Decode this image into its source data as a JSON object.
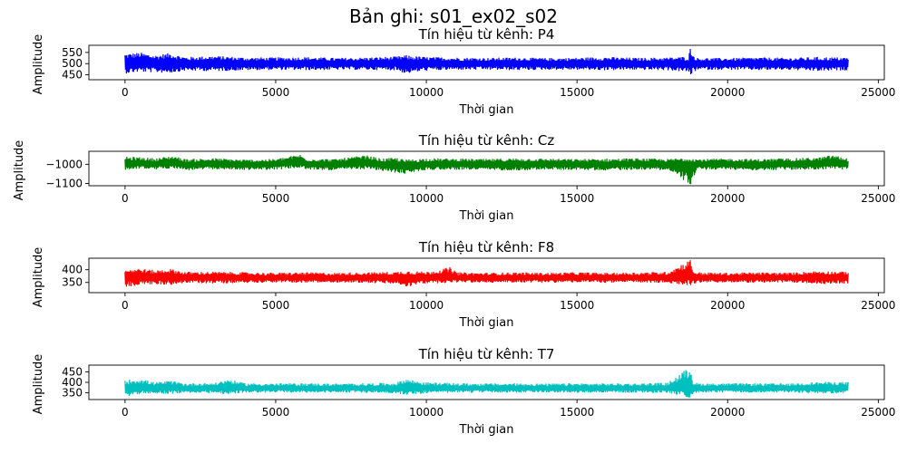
{
  "figure": {
    "suptitle": "Bản ghi: s01_ex02_s02"
  },
  "chart_data": [
    {
      "type": "line",
      "title": "Tín hiệu từ kênh: P4",
      "xlabel": "Thời gian",
      "ylabel": "Amplitude",
      "color": "#0000ff",
      "xlim": [
        -1200,
        25200
      ],
      "ylim": [
        428,
        582
      ],
      "xticks": [
        0,
        5000,
        10000,
        15000,
        20000,
        25000
      ],
      "yticks": [
        450,
        500,
        550
      ],
      "series": [
        {
          "x": [
            0,
            500,
            1000,
            1500,
            2000,
            3000,
            4000,
            5000,
            6000,
            7000,
            8000,
            9000,
            9300,
            10000,
            11000,
            12000,
            13000,
            14000,
            15000,
            16000,
            17000,
            18000,
            18700,
            18780,
            18850,
            19000,
            20000,
            21000,
            22000,
            23000,
            24000
          ],
          "mean": [
            502,
            505,
            500,
            504,
            498,
            502,
            499,
            500,
            501,
            499,
            500,
            502,
            497,
            501,
            499,
            500,
            501,
            499,
            500,
            501,
            499,
            500,
            498,
            505,
            500,
            499,
            500,
            501,
            499,
            498,
            500
          ],
          "high": [
            545,
            550,
            538,
            548,
            530,
            535,
            528,
            528,
            530,
            526,
            528,
            532,
            538,
            530,
            528,
            526,
            528,
            525,
            527,
            530,
            526,
            528,
            532,
            582,
            540,
            526,
            525,
            528,
            526,
            530,
            528
          ],
          "low": [
            455,
            462,
            460,
            458,
            468,
            466,
            470,
            472,
            470,
            472,
            472,
            470,
            455,
            468,
            472,
            472,
            470,
            472,
            472,
            470,
            472,
            470,
            462,
            445,
            460,
            472,
            472,
            470,
            472,
            466,
            470
          ]
        }
      ]
    },
    {
      "type": "line",
      "title": "Tín hiệu từ kênh: Cz",
      "xlabel": "Thời gian",
      "ylabel": "Amplitude",
      "color": "#008000",
      "xlim": [
        -1200,
        25200
      ],
      "ylim": [
        -1112,
        -932
      ],
      "xticks": [
        0,
        5000,
        10000,
        15000,
        20000,
        25000
      ],
      "yticks": [
        -1000,
        -1100
      ],
      "series": [
        {
          "x": [
            0,
            500,
            1000,
            1600,
            2000,
            3000,
            4000,
            5000,
            5800,
            6000,
            7000,
            8000,
            8500,
            9000,
            9300,
            10000,
            11000,
            12000,
            13000,
            14000,
            15000,
            16000,
            17000,
            18000,
            18780,
            19000,
            20000,
            21000,
            22000,
            23000,
            23500,
            24000
          ],
          "mean": [
            -998,
            -995,
            -1000,
            -990,
            -1002,
            -998,
            -1003,
            -1000,
            -985,
            -998,
            -1000,
            -992,
            -1002,
            -1005,
            -1010,
            -1000,
            -998,
            -1002,
            -1000,
            -998,
            -1000,
            -1002,
            -998,
            -1000,
            -1005,
            -1000,
            -998,
            -1002,
            -1000,
            -996,
            -992,
            -1000
          ],
          "high": [
            -960,
            -962,
            -968,
            -955,
            -972,
            -968,
            -975,
            -972,
            -948,
            -970,
            -972,
            -952,
            -970,
            -965,
            -975,
            -968,
            -970,
            -972,
            -968,
            -970,
            -972,
            -970,
            -968,
            -972,
            -962,
            -972,
            -970,
            -972,
            -968,
            -965,
            -950,
            -970
          ],
          "low": [
            -1030,
            -1022,
            -1028,
            -1020,
            -1032,
            -1026,
            -1030,
            -1028,
            -1020,
            -1028,
            -1032,
            -1025,
            -1035,
            -1045,
            -1050,
            -1030,
            -1028,
            -1030,
            -1032,
            -1028,
            -1030,
            -1032,
            -1028,
            -1030,
            -1108,
            -1030,
            -1028,
            -1032,
            -1030,
            -1028,
            -1025,
            -1030
          ]
        }
      ]
    },
    {
      "type": "line",
      "title": "Tín hiệu từ kênh: F8",
      "xlabel": "Thời gian",
      "ylabel": "Amplitude",
      "color": "#ff0000",
      "xlim": [
        -1200,
        25200
      ],
      "ylim": [
        310,
        445
      ],
      "xticks": [
        0,
        5000,
        10000,
        15000,
        20000,
        25000
      ],
      "yticks": [
        400,
        350
      ],
      "series": [
        {
          "x": [
            0,
            500,
            1000,
            1500,
            2000,
            3000,
            4000,
            5000,
            6000,
            7000,
            8000,
            9000,
            9300,
            10000,
            10800,
            11000,
            12000,
            13000,
            14000,
            15000,
            16000,
            17000,
            18000,
            18780,
            18850,
            19000,
            20000,
            21000,
            22000,
            23000,
            24000
          ],
          "mean": [
            372,
            375,
            370,
            373,
            368,
            370,
            369,
            368,
            369,
            368,
            369,
            368,
            366,
            369,
            370,
            368,
            369,
            368,
            369,
            368,
            369,
            368,
            369,
            380,
            368,
            369,
            368,
            369,
            368,
            370,
            370
          ],
          "high": [
            402,
            405,
            398,
            404,
            392,
            392,
            390,
            388,
            390,
            388,
            390,
            392,
            398,
            392,
            410,
            390,
            388,
            390,
            388,
            390,
            388,
            390,
            392,
            442,
            398,
            390,
            388,
            390,
            388,
            396,
            392
          ],
          "low": [
            330,
            340,
            342,
            340,
            348,
            346,
            348,
            350,
            348,
            350,
            348,
            344,
            332,
            346,
            348,
            350,
            348,
            350,
            348,
            350,
            348,
            350,
            346,
            338,
            344,
            348,
            350,
            348,
            350,
            344,
            346
          ]
        }
      ]
    },
    {
      "type": "line",
      "title": "Tín hiệu từ kênh: T7",
      "xlabel": "Thời gian",
      "ylabel": "Amplitude",
      "color": "#00bfbf",
      "xlim": [
        -1200,
        25200
      ],
      "ylim": [
        318,
        482
      ],
      "xticks": [
        0,
        5000,
        10000,
        15000,
        20000,
        25000
      ],
      "yticks": [
        450,
        400,
        350
      ],
      "series": [
        {
          "x": [
            0,
            500,
            1000,
            1500,
            2000,
            3000,
            3400,
            4000,
            5000,
            6000,
            7000,
            8000,
            9000,
            9300,
            10000,
            11000,
            12000,
            13000,
            14000,
            15000,
            16000,
            17000,
            18000,
            18780,
            18850,
            19000,
            20000,
            21000,
            22000,
            23000,
            24000
          ],
          "mean": [
            370,
            376,
            372,
            375,
            370,
            372,
            378,
            371,
            372,
            371,
            372,
            371,
            372,
            374,
            372,
            371,
            372,
            371,
            372,
            371,
            372,
            371,
            372,
            380,
            372,
            371,
            372,
            371,
            372,
            374,
            375
          ],
          "high": [
            412,
            418,
            400,
            408,
            396,
            398,
            415,
            396,
            395,
            396,
            394,
            396,
            398,
            418,
            400,
            396,
            395,
            396,
            394,
            396,
            395,
            396,
            398,
            478,
            405,
            396,
            395,
            396,
            394,
            402,
            402
          ],
          "low": [
            332,
            344,
            346,
            344,
            350,
            348,
            342,
            350,
            352,
            350,
            352,
            350,
            348,
            340,
            348,
            350,
            352,
            350,
            352,
            350,
            352,
            350,
            348,
            326,
            344,
            350,
            352,
            350,
            352,
            346,
            348
          ]
        }
      ]
    }
  ]
}
